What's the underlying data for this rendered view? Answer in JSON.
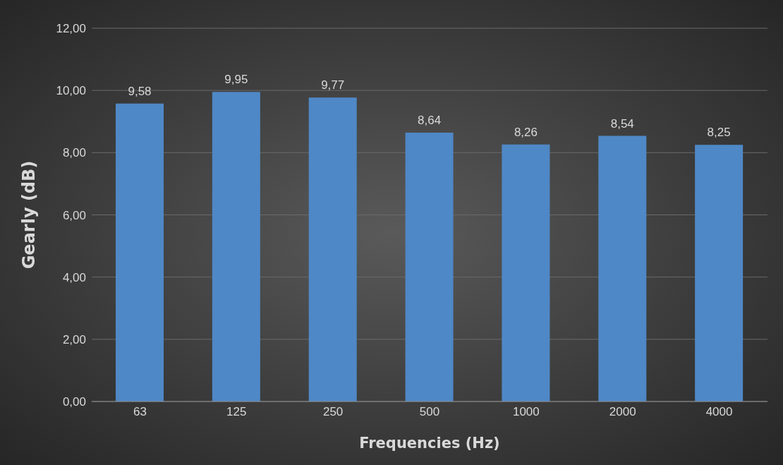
{
  "chart_data": {
    "type": "bar",
    "xlabel": "Frequencies (Hz)",
    "ylabel": "Gearly (dB)",
    "categories": [
      "63",
      "125",
      "250",
      "500",
      "1000",
      "2000",
      "4000"
    ],
    "values": [
      9.58,
      9.95,
      9.77,
      8.64,
      8.26,
      8.54,
      8.25
    ],
    "value_labels": [
      "9,58",
      "9,95",
      "9,77",
      "8,64",
      "8,26",
      "8,54",
      "8,25"
    ],
    "color": "#4f88c6",
    "ylim": [
      0,
      12
    ],
    "yticks": [
      {
        "value": 0,
        "label": "0,00"
      },
      {
        "value": 2,
        "label": "2,00"
      },
      {
        "value": 4,
        "label": "4,00"
      },
      {
        "value": 6,
        "label": "6,00"
      },
      {
        "value": 8,
        "label": "8,00"
      },
      {
        "value": 10,
        "label": "10,00"
      },
      {
        "value": 12,
        "label": "12,00"
      }
    ],
    "grid": "y"
  }
}
